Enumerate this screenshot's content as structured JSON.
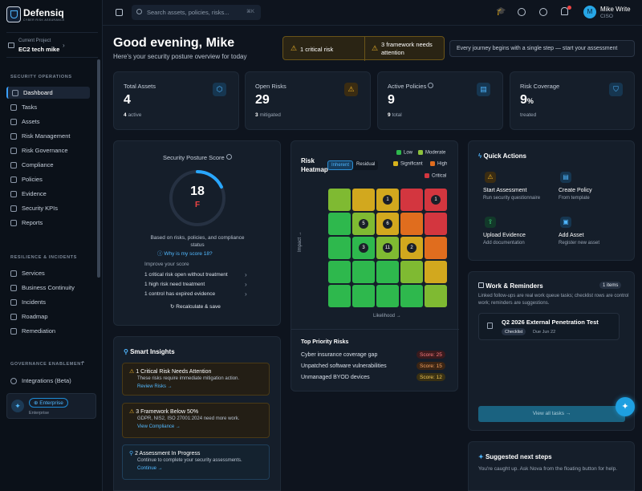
{
  "brand": {
    "name": "Defensiq",
    "tagline": "CYBER RISK ASSURANCE"
  },
  "project": {
    "label": "Current Project",
    "name": "EC2 tech mike"
  },
  "sidebar": {
    "sections": [
      "SECURITY OPERATIONS",
      "RESILIENCE & INCIDENTS",
      "GOVERNANCE ENABLEMENT"
    ],
    "items": [
      "Dashboard",
      "Tasks",
      "Assets",
      "Risk Management",
      "Risk Governance",
      "Compliance",
      "Policies",
      "Evidence",
      "Security KPIs",
      "Reports"
    ],
    "items2": [
      "Services",
      "Business Continuity",
      "Incidents",
      "Roadmap",
      "Remediation"
    ],
    "items3": [
      "Integrations (Beta)"
    ],
    "plan": "Enterprise",
    "plan_sub": "Enterprise"
  },
  "topbar": {
    "search_placeholder": "Search assets, policies, risks...",
    "shortcut": "⌘K",
    "user_name": "Mike Write",
    "user_role": "CISO",
    "avatar": "M"
  },
  "header": {
    "greeting": "Good evening, Mike",
    "subtitle": "Here's your security posture overview for today",
    "alert1": "1 critical risk",
    "alert2": "3 framework needs attention",
    "motto": "Every journey begins with a single step — start your assessment"
  },
  "stats": [
    {
      "title": "Total Assets",
      "value": "4",
      "sub_num": "4",
      "sub": "active",
      "icon": "cube-icon"
    },
    {
      "title": "Open Risks",
      "value": "29",
      "sub_num": "3",
      "sub": "mitigated",
      "icon": "warning-icon"
    },
    {
      "title": "Active Policies",
      "value": "9",
      "sub_num": "9",
      "sub": "total",
      "icon": "document-icon"
    },
    {
      "title": "Risk Coverage",
      "value": "9",
      "unit": "%",
      "sub": "treated",
      "icon": "shield-icon"
    }
  ],
  "posture": {
    "title": "Security Posture Score",
    "score": "18",
    "grade": "F",
    "fraction": 0.18,
    "desc": "Based on risks, policies, and compliance status",
    "why": "Why is my score 18?",
    "improve": "Improve your score",
    "items": [
      "1 critical risk open without treatment",
      "1 high risk need treatment",
      "1 control has expired evidence"
    ],
    "recalc": "Recalculate & save"
  },
  "heatmap": {
    "title": "Risk Heatmap",
    "tabs": [
      "Inherent",
      "Residual"
    ],
    "legend": [
      {
        "label": "Low",
        "color": "#2eb84d"
      },
      {
        "label": "Moderate",
        "color": "#8dc23c"
      },
      {
        "label": "Significant",
        "color": "#d6b21c"
      },
      {
        "label": "High",
        "color": "#e06d1e"
      },
      {
        "label": "Critical",
        "color": "#d3363f"
      }
    ],
    "ylabel": "Impact →",
    "xlabel": "Likelihood →",
    "grid": [
      [
        "#7fba32",
        "#d2a81e",
        "#d2a81e",
        "#d3363f",
        "#d3363f"
      ],
      [
        "#2eb84d",
        "#7fba32",
        "#d2a81e",
        "#e06d1e",
        "#d3363f"
      ],
      [
        "#2eb84d",
        "#2eb84d",
        "#7fba32",
        "#d2a81e",
        "#e06d1e"
      ],
      [
        "#2eb84d",
        "#2eb84d",
        "#2eb84d",
        "#7fba32",
        "#d2a81e"
      ],
      [
        "#2eb84d",
        "#2eb84d",
        "#2eb84d",
        "#2eb84d",
        "#7fba32"
      ]
    ],
    "counts": [
      {
        "r": 0,
        "c": 2,
        "v": "1"
      },
      {
        "r": 0,
        "c": 4,
        "v": "1"
      },
      {
        "r": 1,
        "c": 1,
        "v": "5"
      },
      {
        "r": 1,
        "c": 2,
        "v": "6"
      },
      {
        "r": 2,
        "c": 1,
        "v": "3"
      },
      {
        "r": 2,
        "c": 2,
        "v": "11"
      },
      {
        "r": 2,
        "c": 3,
        "v": "2"
      }
    ],
    "priority_title": "Top Priority Risks",
    "priority": [
      {
        "name": "Cyber insurance coverage gap",
        "score": "Score: 25",
        "color": "#e5484d"
      },
      {
        "name": "Unpatched software vulnerabilities",
        "score": "Score: 15",
        "color": "#f08a3c"
      },
      {
        "name": "Unmanaged BYOD devices",
        "score": "Score: 12",
        "color": "#e3b341"
      }
    ]
  },
  "quick_actions": {
    "title": "Quick Actions",
    "items": [
      {
        "title": "Start Assessment",
        "sub": "Run security questionnaire",
        "icon": "warning-icon"
      },
      {
        "title": "Create Policy",
        "sub": "From template",
        "icon": "document-icon"
      },
      {
        "title": "Upload Evidence",
        "sub": "Add documentation",
        "icon": "upload-icon"
      },
      {
        "title": "Add Asset",
        "sub": "Register new asset",
        "icon": "clipboard-icon"
      }
    ]
  },
  "work": {
    "title": "Work & Reminders",
    "badge": "1 items",
    "desc": "Linked follow-ups are real work queue tasks; checklist rows are control work; reminders are suggestions.",
    "task_title": "Q2 2026 External Penetration Test",
    "task_tag": "Checklist",
    "task_due": "Due Jun 22",
    "view_all": "View all tasks →"
  },
  "insights": {
    "title": "Smart Insights",
    "items": [
      {
        "title": "1 Critical Risk Needs Attention",
        "desc": "These risks require immediate mitigation action.",
        "link": "Review Risks →"
      },
      {
        "title": "3 Framework Below 50%",
        "desc": "GDPR, NIS2, ISO 27001:2024 need more work.",
        "link": "View Compliance →"
      },
      {
        "title": "2 Assessment In Progress",
        "desc": "Continue to complete your security assessments.",
        "link": "Continue →"
      }
    ]
  },
  "next_steps": {
    "title": "Suggested next steps",
    "desc": "You're caught up. Ask Nova from the floating button for help."
  }
}
